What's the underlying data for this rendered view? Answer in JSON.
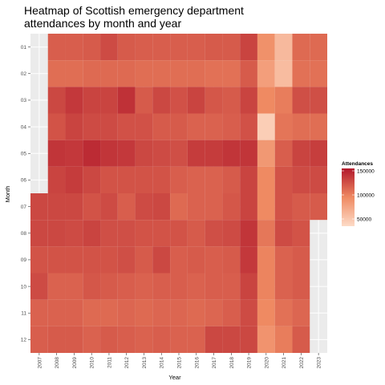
{
  "chart_data": {
    "type": "heatmap",
    "title_lines": [
      "Heatmap of Scottish emergency department",
      "attendances by month and year"
    ],
    "xlabel": "Year",
    "ylabel": "Month",
    "x": [
      "2007",
      "2008",
      "2009",
      "2010",
      "2011",
      "2012",
      "2013",
      "2014",
      "2015",
      "2016",
      "2017",
      "2018",
      "2019",
      "2020",
      "2021",
      "2022",
      "2023"
    ],
    "y": [
      "01",
      "02",
      "03",
      "04",
      "05",
      "06",
      "07",
      "08",
      "09",
      "10",
      "11",
      "12"
    ],
    "z": [
      [
        null,
        118000,
        118000,
        120000,
        128000,
        120000,
        118000,
        118000,
        118000,
        118000,
        120000,
        120000,
        132000,
        90000,
        60000,
        112000,
        112000
      ],
      [
        null,
        110000,
        110000,
        112000,
        112000,
        112000,
        110000,
        110000,
        110000,
        110000,
        108000,
        108000,
        120000,
        80000,
        58000,
        108000,
        108000
      ],
      [
        null,
        130000,
        138000,
        132000,
        132000,
        142000,
        120000,
        130000,
        125000,
        132000,
        122000,
        120000,
        132000,
        95000,
        102000,
        126000,
        126000
      ],
      [
        null,
        124000,
        132000,
        128000,
        128000,
        125000,
        125000,
        120000,
        120000,
        116000,
        116000,
        118000,
        125000,
        45000,
        106000,
        110000,
        110000
      ],
      [
        null,
        140000,
        138000,
        145000,
        140000,
        138000,
        130000,
        128000,
        126000,
        136000,
        136000,
        140000,
        140000,
        85000,
        118000,
        132000,
        135000
      ],
      [
        null,
        132000,
        136000,
        130000,
        124000,
        124000,
        124000,
        124000,
        118000,
        116000,
        116000,
        120000,
        132000,
        95000,
        124000,
        128000,
        128000
      ],
      [
        130000,
        130000,
        130000,
        124000,
        128000,
        118000,
        128000,
        130000,
        112000,
        116000,
        116000,
        122000,
        132000,
        95000,
        124000,
        120000,
        120000
      ],
      [
        130000,
        130000,
        128000,
        132000,
        126000,
        126000,
        124000,
        124000,
        124000,
        120000,
        126000,
        128000,
        140000,
        105000,
        128000,
        124000,
        null
      ],
      [
        124000,
        124000,
        124000,
        124000,
        124000,
        126000,
        120000,
        130000,
        118000,
        120000,
        118000,
        120000,
        138000,
        98000,
        116000,
        120000,
        null
      ],
      [
        128000,
        116000,
        116000,
        122000,
        120000,
        118000,
        116000,
        118000,
        118000,
        116000,
        118000,
        118000,
        132000,
        98000,
        116000,
        120000,
        null
      ],
      [
        116000,
        116000,
        116000,
        112000,
        112000,
        114000,
        112000,
        114000,
        114000,
        112000,
        114000,
        118000,
        128000,
        95000,
        108000,
        114000,
        null
      ],
      [
        118000,
        120000,
        120000,
        116000,
        120000,
        118000,
        116000,
        118000,
        116000,
        116000,
        130000,
        130000,
        130000,
        88000,
        102000,
        120000,
        null
      ]
    ],
    "legend": {
      "title": "Attendances",
      "min": 35000,
      "max": 155000,
      "ticks": [
        50000,
        100000,
        150000
      ],
      "tick_labels": [
        "50000",
        "100000",
        "150000"
      ],
      "colors": [
        "#fddbc7",
        "#ef8a62",
        "#b2182b"
      ],
      "placement": "right"
    },
    "panel_background": "#ebebeb",
    "grid": true
  }
}
